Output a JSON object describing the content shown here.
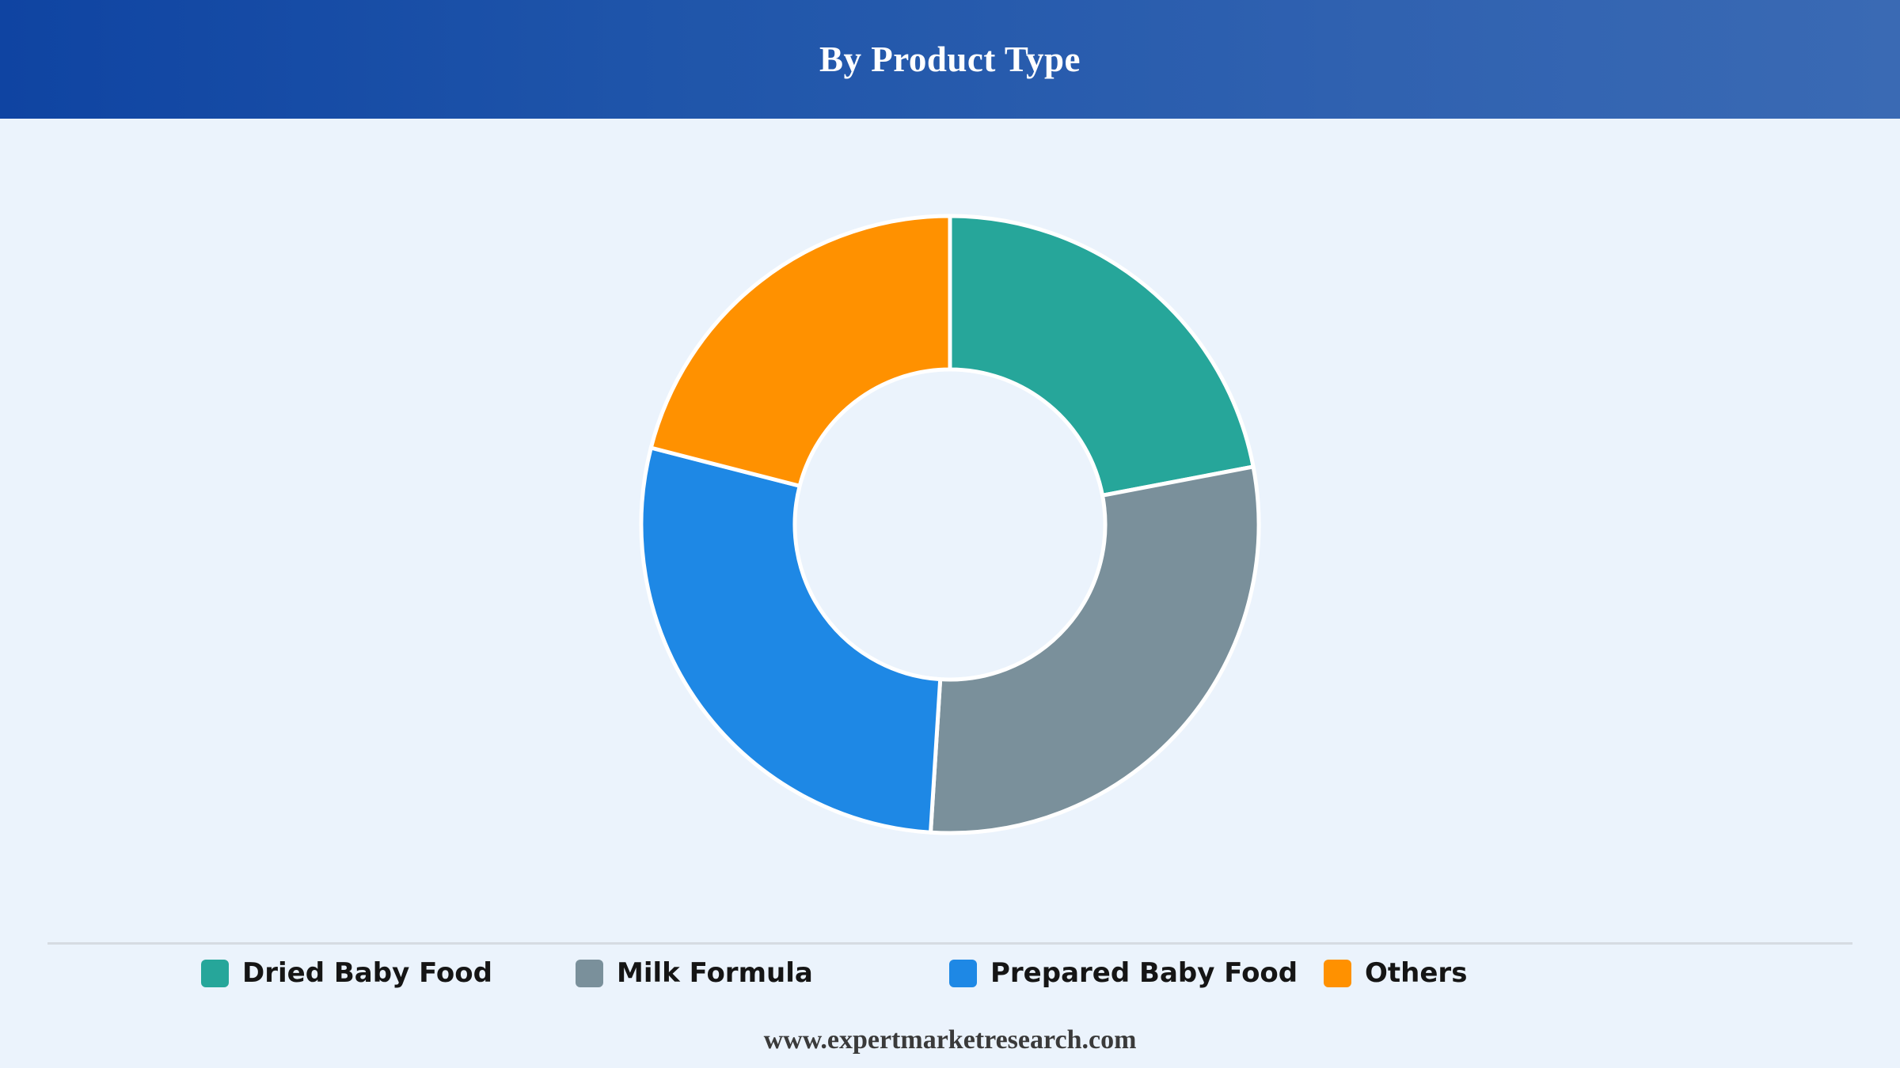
{
  "header": {
    "title": "By Product Type"
  },
  "chart_data": {
    "type": "pie",
    "title": "By Product Type",
    "donut": true,
    "legend_position": "bottom",
    "categories": [
      "Dried Baby Food",
      "Milk Formula",
      "Prepared Baby Food",
      "Others"
    ],
    "values": [
      22,
      29,
      28,
      21
    ],
    "unit": "%",
    "colors": [
      "#26a69a",
      "#7a909b",
      "#1e88e5",
      "#ff9100"
    ]
  },
  "footer": {
    "source": "www.expertmarketresearch.com"
  }
}
